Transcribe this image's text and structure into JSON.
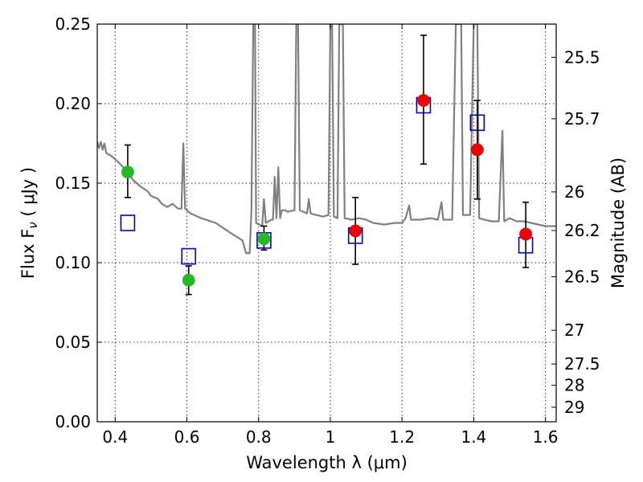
{
  "chart_data": {
    "type": "scatter",
    "title": "",
    "xlabel": "Wavelength  λ (μm)",
    "ylabel": "Flux  F",
    "ylabel_sub": "ν",
    "ylabel_unit": "  ( μJy )",
    "y2label": "Magnitude (AB)",
    "xlim": [
      0.35,
      1.63
    ],
    "ylim": [
      0,
      0.25
    ],
    "grid": true,
    "x_ticks": [
      0.4,
      0.6,
      0.8,
      1.0,
      1.2,
      1.4,
      1.6
    ],
    "x_tick_labels": [
      "0.4",
      "0.6",
      "0.8",
      "1",
      "1.2",
      "1.4",
      "1.6"
    ],
    "y_ticks": [
      0.0,
      0.05,
      0.1,
      0.15,
      0.2,
      0.25
    ],
    "y_tick_labels": [
      "0.00",
      "0.05",
      "0.10",
      "0.15",
      "0.20",
      "0.25"
    ],
    "y2_ticks": [
      {
        "label": "25.5",
        "flux": 0.2291
      },
      {
        "label": "25.7",
        "flux": 0.1905
      },
      {
        "label": "26",
        "flux": 0.1445
      },
      {
        "label": "26.2",
        "flux": 0.1202
      },
      {
        "label": "26.5",
        "flux": 0.0912
      },
      {
        "label": "27",
        "flux": 0.0575
      },
      {
        "label": "27.5",
        "flux": 0.0363
      },
      {
        "label": "28",
        "flux": 0.0229
      },
      {
        "label": "29",
        "flux": 0.0091
      }
    ],
    "series": [
      {
        "marker": "line",
        "color": "#808080",
        "points": [
          [
            0.35,
            0.176
          ],
          [
            0.355,
            0.172
          ],
          [
            0.36,
            0.176
          ],
          [
            0.365,
            0.171
          ],
          [
            0.37,
            0.175
          ],
          [
            0.375,
            0.169
          ],
          [
            0.39,
            0.167
          ],
          [
            0.41,
            0.163
          ],
          [
            0.43,
            0.158
          ],
          [
            0.45,
            0.152
          ],
          [
            0.47,
            0.148
          ],
          [
            0.49,
            0.145
          ],
          [
            0.5,
            0.142
          ],
          [
            0.52,
            0.14
          ],
          [
            0.53,
            0.137
          ],
          [
            0.545,
            0.135
          ],
          [
            0.56,
            0.137
          ],
          [
            0.575,
            0.134
          ],
          [
            0.585,
            0.134
          ],
          [
            0.59,
            0.175
          ],
          [
            0.595,
            0.134
          ],
          [
            0.61,
            0.131
          ],
          [
            0.64,
            0.128
          ],
          [
            0.68,
            0.125
          ],
          [
            0.72,
            0.119
          ],
          [
            0.755,
            0.114
          ],
          [
            0.765,
            0.106
          ],
          [
            0.775,
            0.106
          ],
          [
            0.78,
            0.132
          ],
          [
            0.785,
            0.25
          ],
          [
            0.79,
            0.25
          ],
          [
            0.793,
            0.125
          ],
          [
            0.81,
            0.123
          ],
          [
            0.815,
            0.14
          ],
          [
            0.82,
            0.125
          ],
          [
            0.835,
            0.127
          ],
          [
            0.84,
            0.127
          ],
          [
            0.845,
            0.154
          ],
          [
            0.85,
            0.128
          ],
          [
            0.855,
            0.16
          ],
          [
            0.86,
            0.128
          ],
          [
            0.865,
            0.133
          ],
          [
            0.875,
            0.133
          ],
          [
            0.88,
            0.132
          ],
          [
            0.9,
            0.133
          ],
          [
            0.905,
            0.25
          ],
          [
            0.91,
            0.25
          ],
          [
            0.915,
            0.133
          ],
          [
            0.935,
            0.131
          ],
          [
            0.94,
            0.14
          ],
          [
            0.945,
            0.131
          ],
          [
            0.96,
            0.13
          ],
          [
            0.98,
            0.129
          ],
          [
            0.995,
            0.13
          ],
          [
            1.0,
            0.25
          ],
          [
            1.005,
            0.25
          ],
          [
            1.01,
            0.129
          ],
          [
            1.02,
            0.128
          ],
          [
            1.025,
            0.25
          ],
          [
            1.035,
            0.25
          ],
          [
            1.04,
            0.128
          ],
          [
            1.06,
            0.127
          ],
          [
            1.08,
            0.128
          ],
          [
            1.1,
            0.127
          ],
          [
            1.12,
            0.125
          ],
          [
            1.15,
            0.124
          ],
          [
            1.18,
            0.125
          ],
          [
            1.2,
            0.125
          ],
          [
            1.21,
            0.128
          ],
          [
            1.22,
            0.136
          ],
          [
            1.225,
            0.127
          ],
          [
            1.25,
            0.127
          ],
          [
            1.28,
            0.128
          ],
          [
            1.3,
            0.127
          ],
          [
            1.31,
            0.138
          ],
          [
            1.315,
            0.127
          ],
          [
            1.34,
            0.127
          ],
          [
            1.35,
            0.25
          ],
          [
            1.365,
            0.25
          ],
          [
            1.37,
            0.13
          ],
          [
            1.39,
            0.13
          ],
          [
            1.4,
            0.25
          ],
          [
            1.41,
            0.25
          ],
          [
            1.415,
            0.128
          ],
          [
            1.43,
            0.127
          ],
          [
            1.45,
            0.126
          ],
          [
            1.47,
            0.126
          ],
          [
            1.48,
            0.183
          ],
          [
            1.485,
            0.126
          ],
          [
            1.5,
            0.128
          ],
          [
            1.52,
            0.126
          ],
          [
            1.54,
            0.126
          ],
          [
            1.56,
            0.125
          ],
          [
            1.58,
            0.124
          ],
          [
            1.6,
            0.123
          ],
          [
            1.63,
            0.123
          ]
        ]
      },
      {
        "marker": "open-square",
        "color": "#0000cc",
        "points": [
          [
            0.435,
            0.125
          ],
          [
            0.605,
            0.104
          ],
          [
            0.815,
            0.114
          ],
          [
            1.07,
            0.117
          ],
          [
            1.26,
            0.199
          ],
          [
            1.41,
            0.188
          ],
          [
            1.545,
            0.111
          ]
        ]
      },
      {
        "marker": "filled-circle",
        "color": "#22bb22",
        "points": [
          {
            "x": 0.435,
            "y": 0.157,
            "ylo": 0.141,
            "yhi": 0.174
          },
          {
            "x": 0.605,
            "y": 0.089,
            "ylo": 0.08,
            "yhi": 0.098
          },
          {
            "x": 0.815,
            "y": 0.115,
            "ylo": 0.108,
            "yhi": 0.123
          }
        ]
      },
      {
        "marker": "filled-circle",
        "color": "#ee0000",
        "points": [
          {
            "x": 1.07,
            "y": 0.12,
            "ylo": 0.099,
            "yhi": 0.141
          },
          {
            "x": 1.26,
            "y": 0.202,
            "ylo": 0.162,
            "yhi": 0.243
          },
          {
            "x": 1.41,
            "y": 0.171,
            "ylo": 0.14,
            "yhi": 0.202
          },
          {
            "x": 1.545,
            "y": 0.118,
            "ylo": 0.097,
            "yhi": 0.138
          }
        ]
      }
    ]
  }
}
